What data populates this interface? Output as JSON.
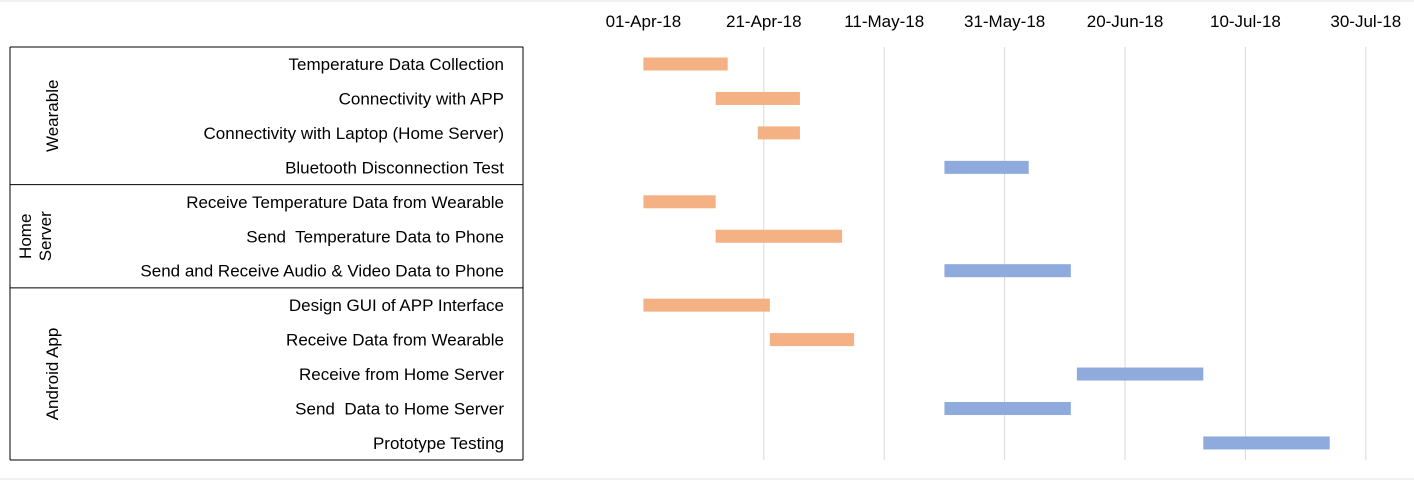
{
  "chart_data": {
    "type": "gantt",
    "title": "",
    "x_axis": {
      "type": "date",
      "range": [
        "2018-03-12",
        "2018-08-07"
      ],
      "ticks": [
        {
          "label": "01-Apr-18",
          "date": "2018-04-01"
        },
        {
          "label": "21-Apr-18",
          "date": "2018-04-21"
        },
        {
          "label": "11-May-18",
          "date": "2018-05-11"
        },
        {
          "label": "31-May-18",
          "date": "2018-05-31"
        },
        {
          "label": "20-Jun-18",
          "date": "2018-06-20"
        },
        {
          "label": "10-Jul-18",
          "date": "2018-07-10"
        },
        {
          "label": "30-Jul-18",
          "date": "2018-07-30"
        }
      ],
      "vertical_gridlines": true,
      "position": "top"
    },
    "colors": {
      "completed": "#f4b183",
      "planned": "#8faadc"
    },
    "groups": [
      {
        "name_lines": [
          "Wearable"
        ],
        "tasks": [
          {
            "label": "Temperature Data Collection",
            "start": "2018-04-01",
            "end": "2018-04-15",
            "status": "completed"
          },
          {
            "label": "Connectivity with APP",
            "start": "2018-04-13",
            "end": "2018-04-27",
            "status": "completed"
          },
          {
            "label": "Connectivity with Laptop (Home Server)",
            "start": "2018-04-20",
            "end": "2018-04-27",
            "status": "completed"
          },
          {
            "label": "Bluetooth Disconnection Test",
            "start": "2018-05-21",
            "end": "2018-06-04",
            "status": "planned"
          }
        ]
      },
      {
        "name_lines": [
          "Home",
          "Server"
        ],
        "tasks": [
          {
            "label": "Receive Temperature Data from Wearable",
            "start": "2018-04-01",
            "end": "2018-04-13",
            "status": "completed"
          },
          {
            "label": "Send  Temperature Data to Phone",
            "start": "2018-04-13",
            "end": "2018-05-04",
            "status": "completed"
          },
          {
            "label": "Send and Receive Audio & Video Data to Phone",
            "start": "2018-05-21",
            "end": "2018-06-11",
            "status": "planned"
          }
        ]
      },
      {
        "name_lines": [
          "Android App"
        ],
        "tasks": [
          {
            "label": "Design GUI of APP Interface",
            "start": "2018-04-01",
            "end": "2018-04-22",
            "status": "completed"
          },
          {
            "label": "Receive Data from Wearable",
            "start": "2018-04-22",
            "end": "2018-05-06",
            "status": "completed"
          },
          {
            "label": "Receive from Home Server",
            "start": "2018-06-12",
            "end": "2018-07-03",
            "status": "planned"
          },
          {
            "label": "Send  Data to Home Server",
            "start": "2018-05-21",
            "end": "2018-06-11",
            "status": "planned"
          },
          {
            "label": "Prototype Testing",
            "start": "2018-07-03",
            "end": "2018-07-24",
            "status": "planned"
          }
        ]
      }
    ]
  }
}
